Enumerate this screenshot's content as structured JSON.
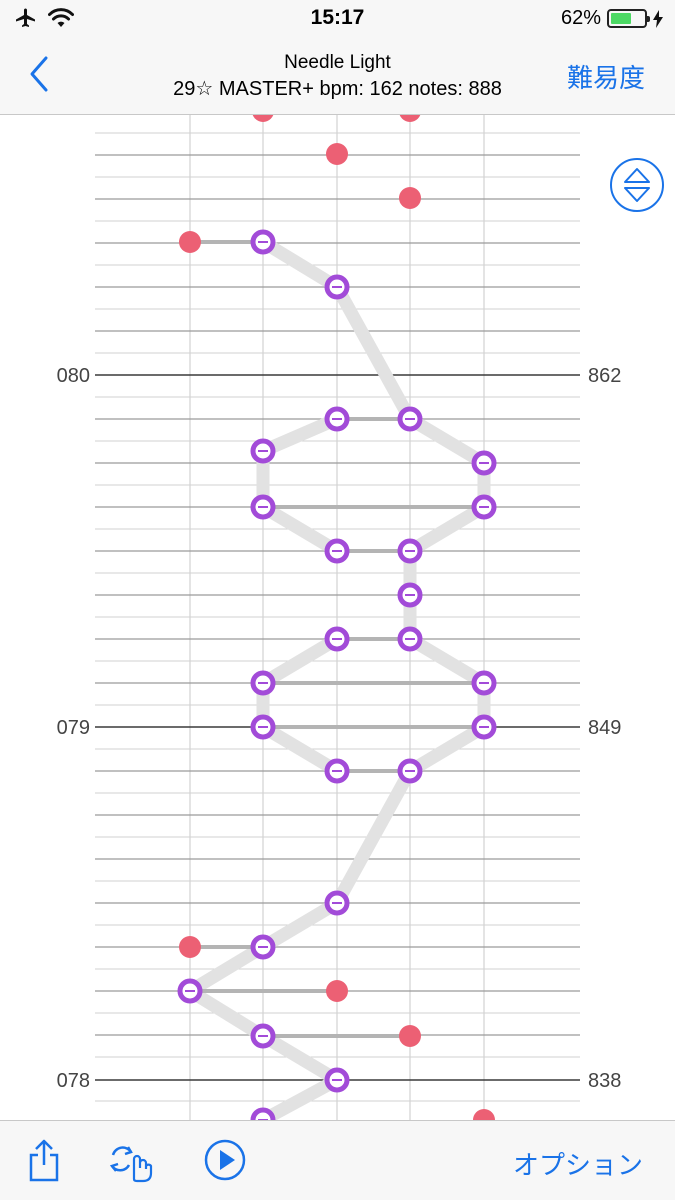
{
  "status_bar": {
    "time": "15:17",
    "battery_percent": "62%",
    "battery_level": 0.62,
    "icons": [
      "airplane-icon",
      "wifi-icon",
      "charging-icon"
    ]
  },
  "nav": {
    "back_icon": "chevron-left-icon",
    "title": "Needle Light",
    "subtitle": "29☆ MASTER+ bpm: 162 notes: 888",
    "difficulty_label": "難易度"
  },
  "chart": {
    "measure_labels": [
      {
        "measure": "080",
        "count": "862"
      },
      {
        "measure": "079",
        "count": "849"
      },
      {
        "measure": "078",
        "count": "838"
      }
    ],
    "scroll_toggle_icon": "up-down-arrows-icon"
  },
  "toolbar": {
    "share_icon": "share-icon",
    "rotate_icon": "rotate-hand-icon",
    "play_icon": "play-icon",
    "options_label": "オプション"
  },
  "colors": {
    "accent": "#1a73e8",
    "tap_note": "#ec6074",
    "flick_note": "#a24bd8",
    "slide_line": "#e2e2e2",
    "sync_line": "#b4b4b4"
  }
}
